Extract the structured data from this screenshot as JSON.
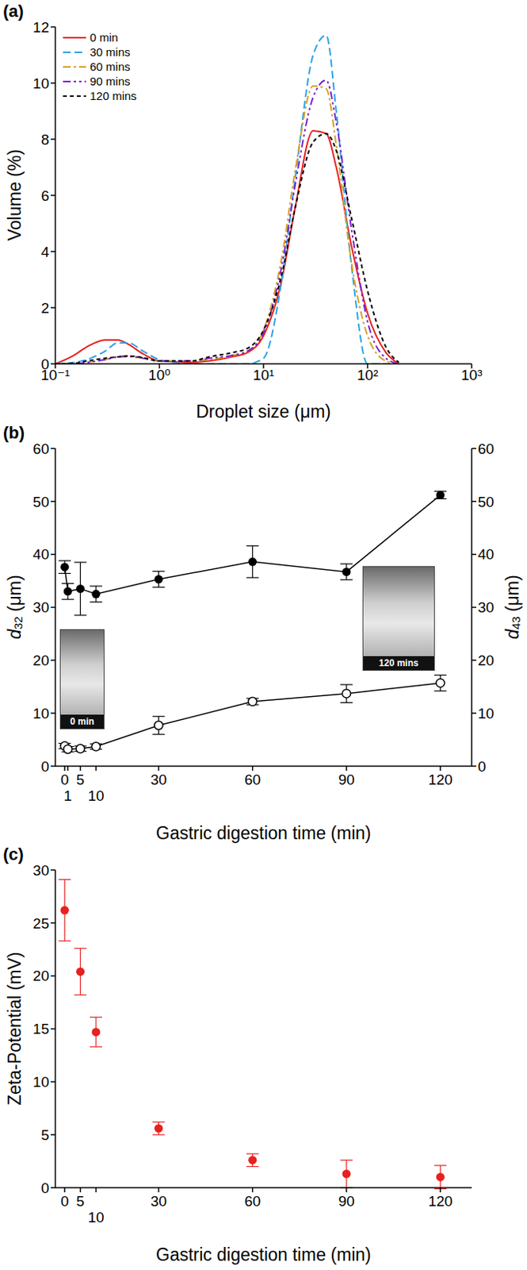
{
  "chart_data": [
    {
      "panel": "(a)",
      "type": "line",
      "x_label": "Droplet size (μm)",
      "y_label": "Volume (%)",
      "log": "x",
      "xlim": [
        0.1,
        1000
      ],
      "xticks": [
        {
          "value": 0.1,
          "label": "10⁻¹"
        },
        {
          "value": 1,
          "label": "10⁰"
        },
        {
          "value": 10,
          "label": "10¹"
        },
        {
          "value": 100,
          "label": "10²"
        },
        {
          "value": 1000,
          "label": "10³"
        }
      ],
      "ylim": [
        0,
        12
      ],
      "yticks": [
        0,
        2,
        4,
        6,
        8,
        10,
        12
      ],
      "legend": "upper left",
      "x": [
        0.1,
        0.15,
        0.2,
        0.3,
        0.4,
        0.5,
        0.7,
        1,
        2,
        3,
        5,
        7,
        10,
        15,
        20,
        30,
        40,
        50,
        70,
        100,
        150,
        200
      ],
      "series": [
        {
          "name": "0 min",
          "color": "#e8201f",
          "line_style": "solid",
          "values": [
            0,
            0.3,
            0.6,
            0.85,
            0.85,
            0.7,
            0.35,
            0.1,
            0.05,
            0.1,
            0.25,
            0.4,
            1.0,
            3.0,
            5.5,
            8.3,
            8.2,
            7.0,
            4.2,
            1.8,
            0.4,
            0
          ]
        },
        {
          "name": "30 mins",
          "color": "#29a3e6",
          "line_style": "dashed",
          "values": [
            0,
            0.05,
            0.15,
            0.45,
            0.75,
            0.75,
            0.45,
            0.15,
            0,
            0,
            0,
            0,
            0.2,
            3.0,
            6.5,
            11.0,
            11.7,
            9.0,
            3.5,
            0,
            0,
            0
          ]
        },
        {
          "name": "60 mins",
          "color": "#d4a027",
          "line_style": "dashdot",
          "values": [
            0,
            0,
            0.05,
            0.15,
            0.25,
            0.25,
            0.2,
            0.1,
            0.1,
            0.15,
            0.3,
            0.45,
            1.2,
            3.8,
            6.8,
            9.9,
            9.8,
            7.8,
            3.6,
            1.0,
            0.1,
            0
          ]
        },
        {
          "name": "90 mins",
          "color": "#7a1fd1",
          "line_style": "dashdotdot",
          "values": [
            0,
            0,
            0.05,
            0.15,
            0.25,
            0.28,
            0.2,
            0.1,
            0.1,
            0.2,
            0.3,
            0.45,
            1.1,
            3.5,
            6.3,
            9.5,
            10.1,
            8.6,
            4.8,
            1.5,
            0.2,
            0
          ]
        },
        {
          "name": "120 mins",
          "color": "#000000",
          "line_style": "shortdash",
          "values": [
            0,
            0.02,
            0.1,
            0.2,
            0.25,
            0.28,
            0.22,
            0.1,
            0.1,
            0.25,
            0.4,
            0.55,
            1.2,
            3.2,
            5.5,
            7.9,
            8.2,
            7.6,
            5.2,
            2.6,
            0.6,
            0.05
          ]
        }
      ]
    },
    {
      "panel": "(b)",
      "type": "scatter",
      "x_label": "Gastric digestion time (min)",
      "y_label": "d32 (μm)",
      "y2_label": "d43 (μm)",
      "xlim": [
        -3,
        130
      ],
      "xticks": [
        0,
        1,
        5,
        10,
        30,
        60,
        90,
        120
      ],
      "ylim": [
        0,
        60
      ],
      "yticks": [
        0,
        10,
        20,
        30,
        40,
        50,
        60
      ],
      "y2lim": [
        0,
        60
      ],
      "y2ticks": [
        0,
        10,
        20,
        30,
        40,
        50,
        60
      ],
      "x": [
        0,
        1,
        5,
        10,
        30,
        60,
        90,
        120
      ],
      "series": [
        {
          "axis": "y",
          "marker": "open_circle",
          "line_style": "solid",
          "color": "#000000",
          "values": [
            3.8,
            3.2,
            3.3,
            3.7,
            7.7,
            12.2,
            13.7,
            15.7
          ],
          "errors": [
            0.5,
            0.5,
            0.5,
            0.5,
            1.7,
            0.6,
            1.7,
            1.5
          ]
        },
        {
          "axis": "y2",
          "marker": "circle",
          "line_style": "solid",
          "color": "#000000",
          "values": [
            37.6,
            33.0,
            33.5,
            32.5,
            35.3,
            38.6,
            36.7,
            51.2
          ],
          "errors": [
            1.2,
            1.5,
            5.0,
            1.5,
            1.5,
            3.0,
            1.5,
            0.7
          ]
        }
      ],
      "insets": [
        "0 min",
        "120 mins"
      ]
    },
    {
      "panel": "(c)",
      "type": "scatter",
      "x_label": "Gastric digestion time (min)",
      "y_label": "Zeta-Potential (mV)",
      "xlim": [
        -3,
        130
      ],
      "xticks": [
        0,
        5,
        10,
        30,
        60,
        90,
        120
      ],
      "ylim": [
        0,
        30
      ],
      "yticks": [
        0,
        5,
        10,
        15,
        20,
        25,
        30
      ],
      "x": [
        0,
        5,
        10,
        30,
        60,
        90,
        120
      ],
      "series": [
        {
          "axis": "y",
          "marker": "circle",
          "color": "#e8201f",
          "values": [
            26.2,
            20.4,
            14.7,
            5.6,
            2.6,
            1.3,
            1.0
          ],
          "errors": [
            2.9,
            2.2,
            1.4,
            0.6,
            0.6,
            1.3,
            1.1
          ]
        }
      ]
    }
  ]
}
